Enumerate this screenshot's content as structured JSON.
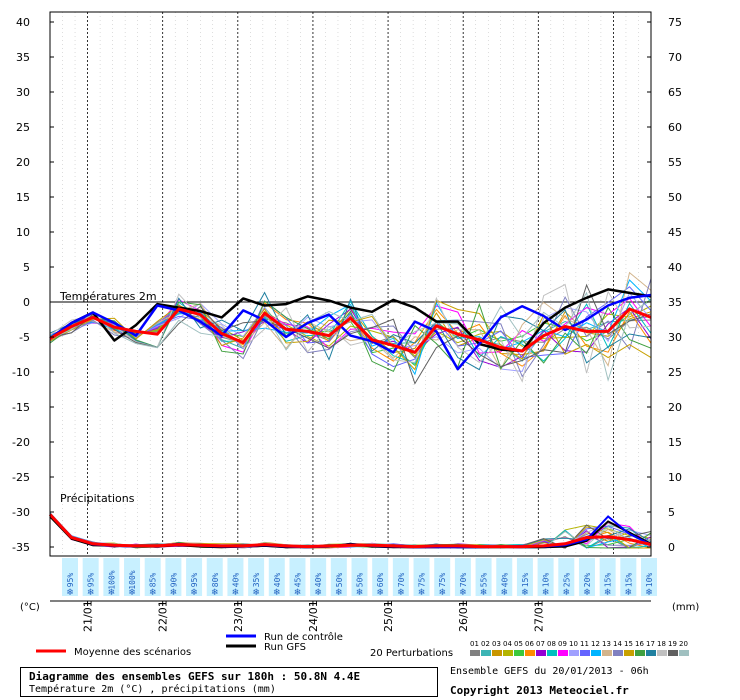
{
  "chart_data": {
    "type": "line",
    "x_day_labels": [
      "21/01",
      "22/01",
      "23/01",
      "24/01",
      "25/01",
      "26/01",
      "27/01"
    ],
    "y_left_ticks": [
      40,
      35,
      30,
      25,
      20,
      15,
      10,
      5,
      0,
      -5,
      -10,
      -15,
      -20,
      -25,
      -30,
      -35
    ],
    "y_right_ticks": [
      75,
      70,
      65,
      60,
      55,
      50,
      45,
      40,
      35,
      30,
      25,
      20,
      15,
      10,
      5,
      0
    ],
    "ylim_left": [
      -35,
      40
    ],
    "y_left_unit": "(°C)",
    "y_right_unit": "(mm)",
    "temperature_section_label": "Températures 2m",
    "precip_section_label": "Précipitations",
    "x_steps": 48,
    "precip_probabilities": [
      "95%",
      "95%",
      "100%",
      "100%",
      "85%",
      "90%",
      "95%",
      "80%",
      "40%",
      "35%",
      "40%",
      "45%",
      "40%",
      "50%",
      "50%",
      "60%",
      "70%",
      "75%",
      "75%",
      "70%",
      "55%",
      "40%",
      "15%",
      "10%",
      "25%",
      "20%",
      "15%",
      "15%",
      "10%"
    ],
    "colors": {
      "mean": "#ff0000",
      "control": "#0000ff",
      "gfs": "#000000",
      "axes": "#000000",
      "grid": "#000000",
      "prob_bg": "#c8f0ff",
      "prob_text": "#2060c0"
    },
    "perturbation_colors": [
      "#808080",
      "#3cb4b4",
      "#c89600",
      "#b4b400",
      "#3cc83c",
      "#ff8c00",
      "#9400d3",
      "#00c0c0",
      "#ff00ff",
      "#a0a0ff",
      "#6464ff",
      "#00b4ff",
      "#d2b48c",
      "#8080c0",
      "#c8a000",
      "#40a040",
      "#2080a0",
      "#c0c0c0",
      "#606060",
      "#a0c0c0"
    ],
    "series": [
      {
        "name": "Moyenne des scénarios",
        "temp": [
          -5.2,
          -3.5,
          -2.2,
          -3.6,
          -4.2,
          -4.6,
          -1.0,
          -1.8,
          -4.5,
          -5.8,
          -1.6,
          -3.9,
          -4.2,
          -4.8,
          -2.3,
          -5.4,
          -6.2,
          -7.2,
          -3.4,
          -4.6,
          -5.4,
          -6.5,
          -7.0,
          -4.8,
          -3.5,
          -4.2,
          -4.2,
          -1.0,
          -2.2
        ]
      },
      {
        "name": "Run de contrôle",
        "temp": [
          -5.2,
          -3.0,
          -1.5,
          -3.0,
          -4.8,
          -0.5,
          -1.2,
          -2.8,
          -4.8,
          -1.2,
          -2.6,
          -5.0,
          -3.0,
          -1.8,
          -4.8,
          -5.6,
          -7.2,
          -2.8,
          -4.2,
          -9.6,
          -6.0,
          -2.2,
          -0.6,
          -2.0,
          -4.0,
          -2.5,
          -0.5,
          0.6,
          1.0
        ]
      },
      {
        "name": "Run GFS",
        "temp": [
          -5.2,
          -3.0,
          -1.5,
          -5.5,
          -3.3,
          -0.3,
          -0.8,
          -1.3,
          -2.2,
          0.5,
          -0.5,
          -0.3,
          0.8,
          0.2,
          -0.8,
          -1.4,
          0.3,
          -0.8,
          -2.8,
          -2.8,
          -6.0,
          -6.8,
          -7.0,
          -3.0,
          -0.8,
          0.6,
          1.8,
          1.3,
          0.8
        ]
      }
    ],
    "precip_mean": [
      4.8,
      1.5,
      0.6,
      0.4,
      0.3,
      0.3,
      0.5,
      0.4,
      0.3,
      0.3,
      0.5,
      0.3,
      0.2,
      0.3,
      0.4,
      0.4,
      0.3,
      0.2,
      0.3,
      0.3,
      0.2,
      0.2,
      0.2,
      0.3,
      0.6,
      1.5,
      1.6,
      1.2,
      0.5
    ],
    "precip_control": [
      4.8,
      1.5,
      0.5,
      0.3,
      0.2,
      0.3,
      0.6,
      0.3,
      0.2,
      0.2,
      0.4,
      0.2,
      0.1,
      0.2,
      0.5,
      0.3,
      0.2,
      0.1,
      0.1,
      0.1,
      0.1,
      0.2,
      0.3,
      0.2,
      0.4,
      1.2,
      4.5,
      2.0,
      0.5
    ],
    "precip_gfs": [
      4.5,
      1.3,
      0.4,
      0.3,
      0.2,
      0.2,
      0.4,
      0.2,
      0.1,
      0.2,
      0.3,
      0.1,
      0.1,
      0.2,
      0.6,
      0.2,
      0.1,
      0.1,
      0.1,
      0.1,
      0.1,
      0.1,
      0.1,
      0.1,
      0.2,
      1.0,
      3.8,
      2.2,
      0.6
    ]
  },
  "legend": {
    "mean_label": "Moyenne des scénarios",
    "control_label": "Run de contrôle",
    "gfs_label": "Run GFS",
    "perturbations_label": "20 Perturbations",
    "perturbation_numbers": [
      "01",
      "02",
      "03",
      "04",
      "05",
      "06",
      "07",
      "08",
      "09",
      "10",
      "11",
      "12",
      "13",
      "14",
      "15",
      "16",
      "17",
      "18",
      "19",
      "20"
    ]
  },
  "footer": {
    "title": "Diagramme des ensembles GEFS sur 180h : 50.8N 4.4E",
    "subtitle": "Température 2m (°C) , précipitations (mm)",
    "ensemble_run": "Ensemble GEFS du 20/01/2013 - 06h",
    "copyright": "Copyright 2013 Meteociel.fr"
  }
}
